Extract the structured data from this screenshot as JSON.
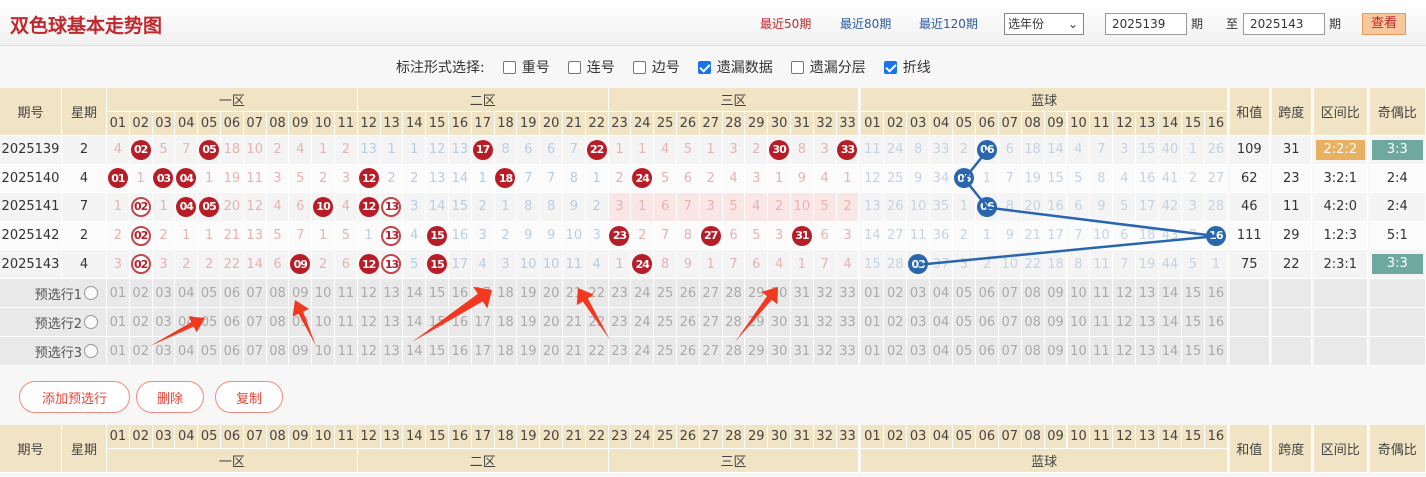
{
  "header": {
    "title": "双色球基本走势图",
    "quick": [
      "最近50期",
      "最近80期",
      "最近120期"
    ],
    "year_select": "选年份",
    "from_label": "期",
    "to_prefix": "至",
    "from": "2025139",
    "to": "2025143",
    "to_label": "期",
    "view_button": "查看"
  },
  "options": {
    "label": "标注形式选择:",
    "items": [
      {
        "label": "重号",
        "checked": false
      },
      {
        "label": "连号",
        "checked": false
      },
      {
        "label": "边号",
        "checked": false
      },
      {
        "label": "遗漏数据",
        "checked": true
      },
      {
        "label": "遗漏分层",
        "checked": false
      },
      {
        "label": "折线",
        "checked": true
      }
    ]
  },
  "table": {
    "headers": {
      "issue": "期号",
      "weekday": "星期",
      "zones": [
        "一区",
        "二区",
        "三区",
        "蓝球"
      ],
      "sum": "和值",
      "span": "跨度",
      "zone_ratio": "区间比",
      "odd_even": "奇偶比",
      "sort_icon": "sort-icon"
    },
    "colors": {
      "red_ball": "#b81c26",
      "blue_ball": "#2966ae",
      "zone_ratio_badge": "#e8b060",
      "odd_even_badge": "#6fa8a0",
      "header_bg": "#f1e4c5"
    },
    "rows": [
      {
        "issue": "2025139",
        "weekday": "2",
        "red": [
          "4",
          "02",
          "5",
          "7",
          "05",
          "18",
          "10",
          "2",
          "4",
          "1",
          "2",
          "13",
          "1",
          "1",
          "12",
          "13",
          "17",
          "8",
          "6",
          "6",
          "7",
          "22",
          "1",
          "1",
          "4",
          "5",
          "1",
          "3",
          "2",
          "30",
          "8",
          "3",
          "33"
        ],
        "red_hits": [
          2,
          5,
          17,
          22,
          30,
          33
        ],
        "red_ring": [],
        "blue": [
          "11",
          "24",
          "8",
          "33",
          "2",
          "06",
          "6",
          "18",
          "14",
          "4",
          "7",
          "3",
          "15",
          "40",
          "1",
          "26"
        ],
        "blue_hit": 6,
        "sum": "109",
        "span": "31",
        "zone_ratio": "2:2:2",
        "odd_even": "3:3",
        "zone_ratio_badge": true,
        "odd_even_badge": true,
        "zone3_highlight": false
      },
      {
        "issue": "2025140",
        "weekday": "4",
        "red": [
          "01",
          "1",
          "03",
          "04",
          "1",
          "19",
          "11",
          "3",
          "5",
          "2",
          "3",
          "12",
          "2",
          "2",
          "13",
          "14",
          "1",
          "18",
          "7",
          "7",
          "8",
          "1",
          "2",
          "24",
          "5",
          "6",
          "2",
          "4",
          "3",
          "1",
          "9",
          "4",
          "1"
        ],
        "red_hits": [
          1,
          3,
          4,
          12,
          18,
          24
        ],
        "red_ring": [],
        "blue": [
          "12",
          "25",
          "9",
          "34",
          "05",
          "1",
          "7",
          "19",
          "15",
          "5",
          "8",
          "4",
          "16",
          "41",
          "2",
          "27"
        ],
        "blue_hit": 5,
        "sum": "62",
        "span": "23",
        "zone_ratio": "3:2:1",
        "odd_even": "2:4",
        "zone_ratio_badge": false,
        "odd_even_badge": false,
        "zone3_highlight": false
      },
      {
        "issue": "2025141",
        "weekday": "7",
        "red": [
          "1",
          "02",
          "1",
          "04",
          "05",
          "20",
          "12",
          "4",
          "6",
          "10",
          "4",
          "12",
          "13",
          "3",
          "14",
          "15",
          "2",
          "1",
          "8",
          "8",
          "9",
          "2",
          "3",
          "1",
          "6",
          "7",
          "3",
          "5",
          "4",
          "2",
          "10",
          "5",
          "2"
        ],
        "red_hits": [
          4,
          5,
          10,
          12
        ],
        "red_ring": [
          2,
          13
        ],
        "blue": [
          "13",
          "26",
          "10",
          "35",
          "1",
          "06",
          "8",
          "20",
          "16",
          "6",
          "9",
          "5",
          "17",
          "42",
          "3",
          "28"
        ],
        "blue_hit": 6,
        "sum": "46",
        "span": "11",
        "zone_ratio": "4:2:0",
        "odd_even": "2:4",
        "zone_ratio_badge": false,
        "odd_even_badge": false,
        "zone3_highlight": true
      },
      {
        "issue": "2025142",
        "weekday": "2",
        "red": [
          "2",
          "02",
          "2",
          "1",
          "1",
          "21",
          "13",
          "5",
          "7",
          "1",
          "5",
          "1",
          "13",
          "4",
          "15",
          "16",
          "3",
          "2",
          "9",
          "9",
          "10",
          "3",
          "23",
          "2",
          "7",
          "8",
          "27",
          "6",
          "5",
          "3",
          "31",
          "6",
          "3"
        ],
        "red_hits": [
          15,
          23,
          27,
          31
        ],
        "red_ring": [
          2,
          13
        ],
        "blue": [
          "14",
          "27",
          "11",
          "36",
          "2",
          "1",
          "9",
          "21",
          "17",
          "7",
          "10",
          "6",
          "18",
          "43",
          "3",
          "16"
        ],
        "blue_hit": 16,
        "sum": "111",
        "span": "29",
        "zone_ratio": "1:2:3",
        "odd_even": "5:1",
        "zone_ratio_badge": false,
        "odd_even_badge": false,
        "zone3_highlight": false
      },
      {
        "issue": "2025143",
        "weekday": "4",
        "red": [
          "3",
          "02",
          "3",
          "2",
          "2",
          "22",
          "14",
          "6",
          "09",
          "2",
          "6",
          "12",
          "13",
          "5",
          "15",
          "17",
          "4",
          "3",
          "10",
          "10",
          "11",
          "4",
          "1",
          "24",
          "8",
          "9",
          "1",
          "7",
          "6",
          "4",
          "1",
          "7",
          "4"
        ],
        "red_hits": [
          9,
          12,
          15,
          24
        ],
        "red_ring": [
          2,
          13
        ],
        "blue": [
          "15",
          "28",
          "03",
          "37",
          "3",
          "2",
          "10",
          "22",
          "18",
          "8",
          "11",
          "7",
          "19",
          "44",
          "5",
          "1"
        ],
        "blue_hit": 3,
        "sum": "75",
        "span": "22",
        "zone_ratio": "2:3:1",
        "odd_even": "3:3",
        "zone_ratio_badge": false,
        "odd_even_badge": true,
        "zone3_highlight": false
      }
    ],
    "preselect_rows": [
      "预选行1",
      "预选行2",
      "预选行3"
    ]
  },
  "buttons": {
    "add": "添加预选行",
    "delete": "删除",
    "copy": "复制"
  }
}
